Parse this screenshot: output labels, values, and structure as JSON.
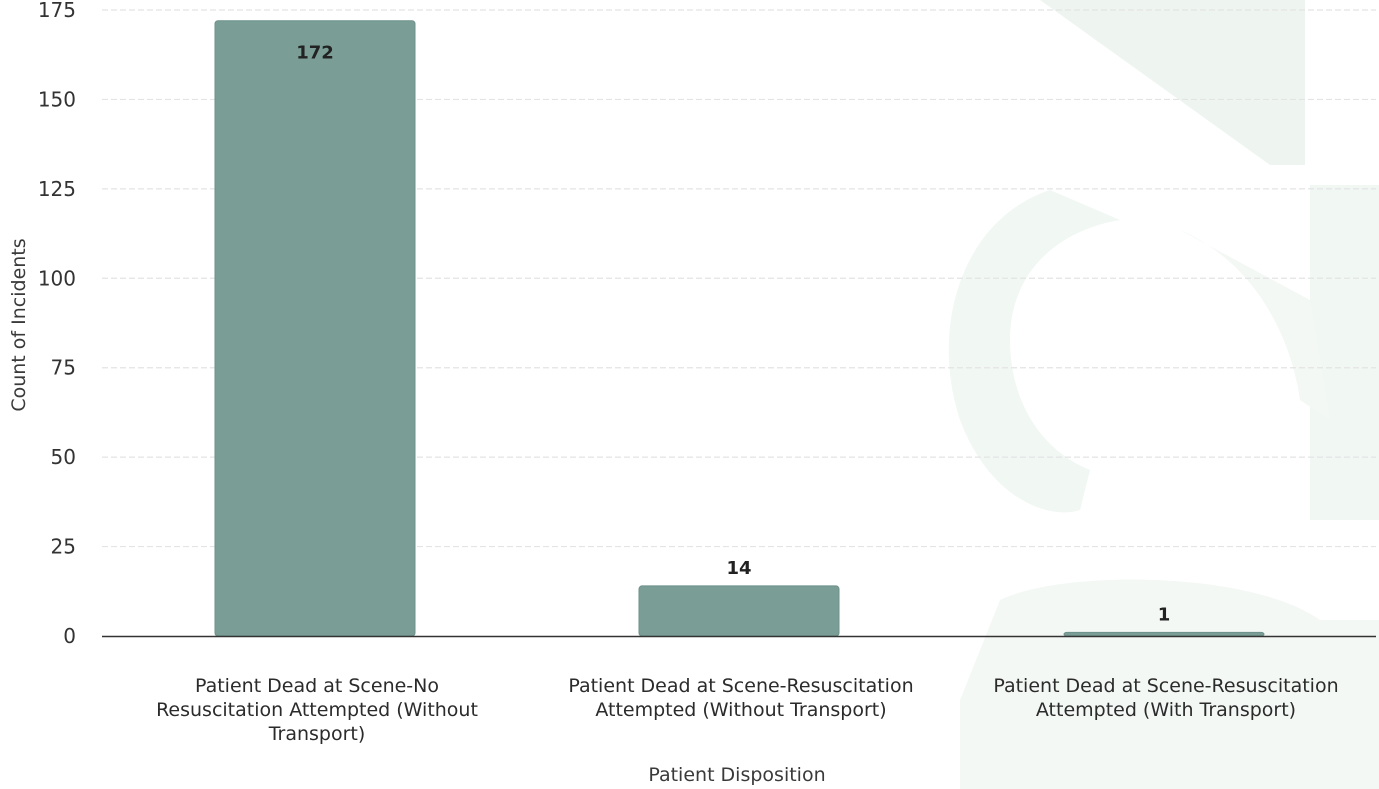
{
  "chart_data": {
    "type": "bar",
    "categories": [
      [
        "Patient Dead at Scene-No",
        "Resuscitation Attempted (Without",
        "Transport)"
      ],
      [
        "Patient Dead at Scene-Resuscitation",
        "Attempted (Without Transport)"
      ],
      [
        "Patient Dead at Scene-Resuscitation",
        "Attempted (With Transport)"
      ]
    ],
    "values": [
      172,
      14,
      1
    ],
    "data_labels": [
      "172",
      "14",
      "1"
    ],
    "xlabel": "Patient Disposition",
    "ylabel": "Count of Incidents",
    "ylim": [
      0,
      175
    ],
    "yticks": [
      0,
      25,
      50,
      75,
      100,
      125,
      150,
      175
    ],
    "grid": true,
    "legend": "none",
    "colors": {
      "bar": "#7a9e96",
      "bar_stroke": "#6d918a",
      "grid": "#e4e4e4",
      "axis": "#333333",
      "watermark": "#eef5f0"
    }
  }
}
